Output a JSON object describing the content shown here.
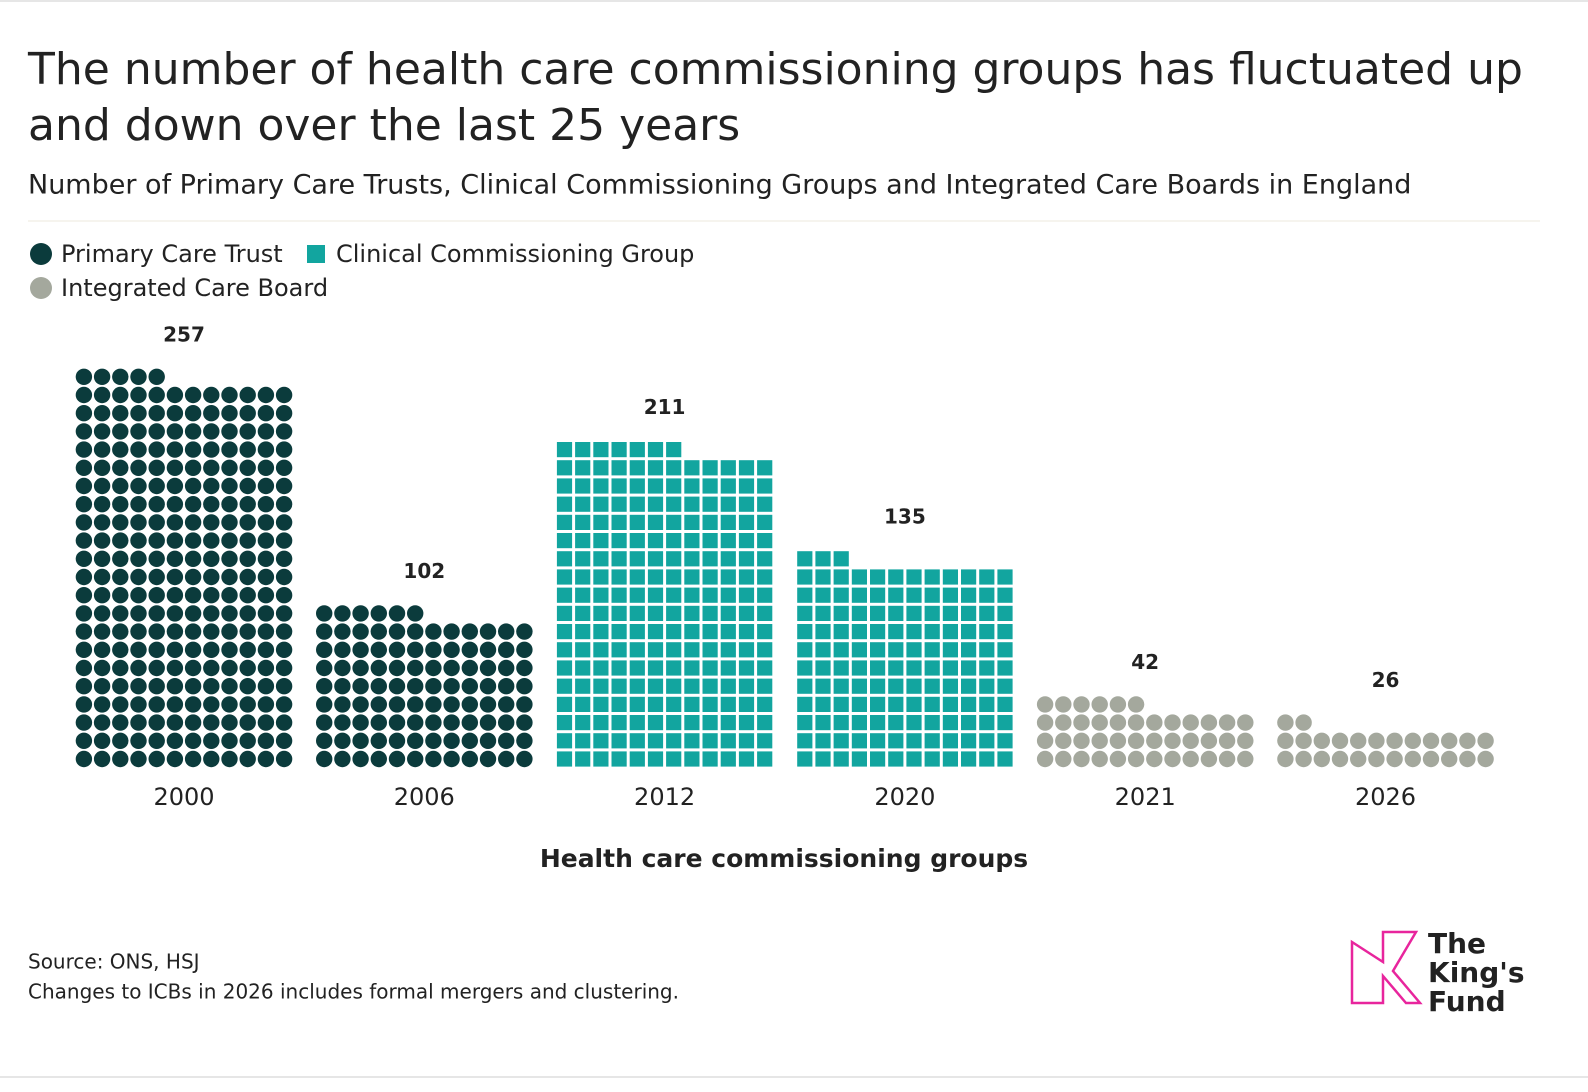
{
  "chart_data": {
    "type": "waffle",
    "title": "The number of health care commissioning groups has fluctuated up and down over the last 25 years",
    "subtitle": "Number of Primary Care Trusts, Clinical Commissioning Groups and Integrated Care Boards in England",
    "x_label": "Health care commissioning groups",
    "categories": [
      "2000",
      "2006",
      "2012",
      "2020",
      "2021",
      "2026"
    ],
    "columns": 12,
    "series": [
      {
        "name": "Primary Care Trust",
        "color": "#0b3b3c",
        "marker": "circle",
        "values": [
          257,
          102,
          null,
          null,
          null,
          null
        ]
      },
      {
        "name": "Clinical Commissioning Group",
        "color": "#12a59f",
        "marker": "square",
        "values": [
          null,
          null,
          211,
          135,
          null,
          null
        ]
      },
      {
        "name": "Integrated Care Board",
        "color": "#a4a89d",
        "marker": "circle",
        "values": [
          null,
          null,
          null,
          null,
          42,
          26
        ]
      }
    ]
  },
  "source": "Source: ONS, HSJ",
  "note": "Changes to ICBs in 2026 includes formal mergers and clustering.",
  "logo": [
    "The",
    "King's",
    "Fund"
  ]
}
